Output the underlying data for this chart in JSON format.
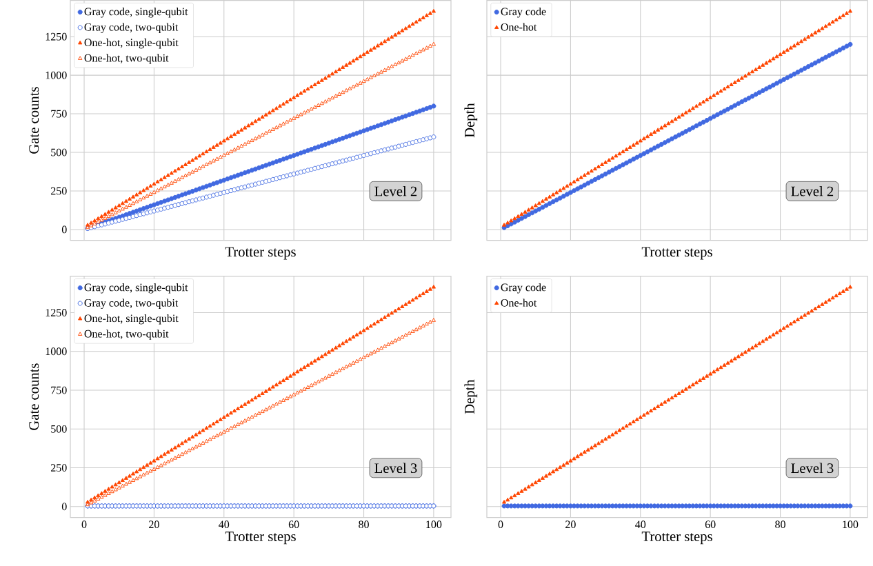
{
  "chart_data": [
    {
      "type": "scatter",
      "xlabel": "Trotter steps",
      "ylabel": "Gate counts",
      "annotations": [
        "Level 2"
      ],
      "grid": true,
      "legend": "top left",
      "tick_labels": "y",
      "xlim": [
        -3.95,
        104.95
      ],
      "ylim": [
        -70,
        1485
      ],
      "xticks": [
        0,
        20,
        40,
        60,
        80,
        100
      ],
      "yticks": [
        0,
        250,
        500,
        750,
        1000,
        1250
      ],
      "x": [
        1,
        2,
        3,
        4,
        5,
        6,
        7,
        8,
        9,
        10,
        11,
        12,
        13,
        14,
        15,
        16,
        17,
        18,
        19,
        20,
        21,
        22,
        23,
        24,
        25,
        26,
        27,
        28,
        29,
        30,
        31,
        32,
        33,
        34,
        35,
        36,
        37,
        38,
        39,
        40,
        41,
        42,
        43,
        44,
        45,
        46,
        47,
        48,
        49,
        50,
        51,
        52,
        53,
        54,
        55,
        56,
        57,
        58,
        59,
        60,
        61,
        62,
        63,
        64,
        65,
        66,
        67,
        68,
        69,
        70,
        71,
        72,
        73,
        74,
        75,
        76,
        77,
        78,
        79,
        80,
        81,
        82,
        83,
        84,
        85,
        86,
        87,
        88,
        89,
        90,
        91,
        92,
        93,
        94,
        95,
        96,
        97,
        98,
        99,
        100
      ],
      "series": [
        {
          "name": "Gray code, single-qubit",
          "color": "#4169e1",
          "marker": "circle",
          "values": [
            8,
            16,
            24,
            32,
            40,
            48,
            56,
            64,
            72,
            80,
            88,
            96,
            104,
            112,
            120,
            128,
            136,
            144,
            152,
            160,
            168,
            176,
            184,
            192,
            200,
            208,
            216,
            224,
            232,
            240,
            248,
            256,
            264,
            272,
            280,
            288,
            296,
            304,
            312,
            320,
            328,
            336,
            344,
            352,
            360,
            368,
            376,
            384,
            392,
            400,
            408,
            416,
            424,
            432,
            440,
            448,
            456,
            464,
            472,
            480,
            488,
            496,
            504,
            512,
            520,
            528,
            536,
            544,
            552,
            560,
            568,
            576,
            584,
            592,
            600,
            608,
            616,
            624,
            632,
            640,
            648,
            656,
            664,
            672,
            680,
            688,
            696,
            704,
            712,
            720,
            728,
            736,
            744,
            752,
            760,
            768,
            776,
            784,
            792,
            800
          ]
        },
        {
          "name": "Gray code, two-qubit",
          "color": "#4169e1",
          "marker": "circle",
          "values": [
            6,
            12,
            18,
            24,
            30,
            36,
            42,
            48,
            54,
            60,
            66,
            72,
            78,
            84,
            90,
            96,
            102,
            108,
            114,
            120,
            126,
            132,
            138,
            144,
            150,
            156,
            162,
            168,
            174,
            180,
            186,
            192,
            198,
            204,
            210,
            216,
            222,
            228,
            234,
            240,
            246,
            252,
            258,
            264,
            270,
            276,
            282,
            288,
            294,
            300,
            306,
            312,
            318,
            324,
            330,
            336,
            342,
            348,
            354,
            360,
            366,
            372,
            378,
            384,
            390,
            396,
            402,
            408,
            414,
            420,
            426,
            432,
            438,
            444,
            450,
            456,
            462,
            468,
            474,
            480,
            486,
            492,
            498,
            504,
            510,
            516,
            522,
            528,
            534,
            540,
            546,
            552,
            558,
            564,
            570,
            576,
            582,
            588,
            594,
            600
          ]
        },
        {
          "name": "One-hot, single-qubit",
          "color": "#ff4500",
          "marker": "triangle",
          "values": [
            28,
            42,
            56,
            70,
            84,
            98,
            112,
            126,
            140,
            154,
            168,
            182,
            196,
            210,
            224,
            238,
            252,
            266,
            280,
            294,
            308,
            322,
            336,
            350,
            364,
            378,
            392,
            406,
            420,
            434,
            448,
            462,
            476,
            490,
            504,
            518,
            532,
            546,
            560,
            574,
            588,
            602,
            616,
            630,
            644,
            658,
            672,
            686,
            700,
            714,
            728,
            742,
            756,
            770,
            784,
            798,
            812,
            826,
            840,
            854,
            868,
            882,
            896,
            910,
            924,
            938,
            952,
            966,
            980,
            994,
            1008,
            1022,
            1036,
            1050,
            1064,
            1078,
            1092,
            1106,
            1120,
            1134,
            1148,
            1162,
            1176,
            1190,
            1204,
            1218,
            1232,
            1246,
            1260,
            1274,
            1288,
            1302,
            1316,
            1330,
            1344,
            1358,
            1372,
            1386,
            1400,
            1414
          ]
        },
        {
          "name": "One-hot, two-qubit",
          "color": "#ff4500",
          "marker": "triangle",
          "values": [
            12,
            24,
            36,
            48,
            60,
            72,
            84,
            96,
            108,
            120,
            132,
            144,
            156,
            168,
            180,
            192,
            204,
            216,
            228,
            240,
            252,
            264,
            276,
            288,
            300,
            312,
            324,
            336,
            348,
            360,
            372,
            384,
            396,
            408,
            420,
            432,
            444,
            456,
            468,
            480,
            492,
            504,
            516,
            528,
            540,
            552,
            564,
            576,
            588,
            600,
            612,
            624,
            636,
            648,
            660,
            672,
            684,
            696,
            708,
            720,
            732,
            744,
            756,
            768,
            780,
            792,
            804,
            816,
            828,
            840,
            852,
            864,
            876,
            888,
            900,
            912,
            924,
            936,
            948,
            960,
            972,
            984,
            996,
            1008,
            1020,
            1032,
            1044,
            1056,
            1068,
            1080,
            1092,
            1104,
            1116,
            1128,
            1140,
            1152,
            1164,
            1176,
            1188,
            1200
          ]
        }
      ]
    },
    {
      "type": "scatter",
      "xlabel": "Trotter steps",
      "ylabel": "Depth",
      "annotations": [
        "Level 2"
      ],
      "grid": true,
      "legend": "top left",
      "tick_labels": false,
      "xlim": [
        -3.95,
        104.95
      ],
      "ylim": [
        -70,
        1485
      ],
      "xticks": [
        0,
        20,
        40,
        60,
        80,
        100
      ],
      "yticks": [
        0,
        250,
        500,
        750,
        1000,
        1250
      ],
      "x": [
        1,
        2,
        3,
        4,
        5,
        6,
        7,
        8,
        9,
        10,
        11,
        12,
        13,
        14,
        15,
        16,
        17,
        18,
        19,
        20,
        21,
        22,
        23,
        24,
        25,
        26,
        27,
        28,
        29,
        30,
        31,
        32,
        33,
        34,
        35,
        36,
        37,
        38,
        39,
        40,
        41,
        42,
        43,
        44,
        45,
        46,
        47,
        48,
        49,
        50,
        51,
        52,
        53,
        54,
        55,
        56,
        57,
        58,
        59,
        60,
        61,
        62,
        63,
        64,
        65,
        66,
        67,
        68,
        69,
        70,
        71,
        72,
        73,
        74,
        75,
        76,
        77,
        78,
        79,
        80,
        81,
        82,
        83,
        84,
        85,
        86,
        87,
        88,
        89,
        90,
        91,
        92,
        93,
        94,
        95,
        96,
        97,
        98,
        99,
        100
      ],
      "series": [
        {
          "name": "Gray code",
          "color": "#4169e1",
          "marker": "circle",
          "values": [
            12,
            24,
            36,
            48,
            60,
            72,
            84,
            96,
            108,
            120,
            132,
            144,
            156,
            168,
            180,
            192,
            204,
            216,
            228,
            240,
            252,
            264,
            276,
            288,
            300,
            312,
            324,
            336,
            348,
            360,
            372,
            384,
            396,
            408,
            420,
            432,
            444,
            456,
            468,
            480,
            492,
            504,
            516,
            528,
            540,
            552,
            564,
            576,
            588,
            600,
            612,
            624,
            636,
            648,
            660,
            672,
            684,
            696,
            708,
            720,
            732,
            744,
            756,
            768,
            780,
            792,
            804,
            816,
            828,
            840,
            852,
            864,
            876,
            888,
            900,
            912,
            924,
            936,
            948,
            960,
            972,
            984,
            996,
            1008,
            1020,
            1032,
            1044,
            1056,
            1068,
            1080,
            1092,
            1104,
            1116,
            1128,
            1140,
            1152,
            1164,
            1176,
            1188,
            1200
          ]
        },
        {
          "name": "One-hot",
          "color": "#ff4500",
          "marker": "triangle",
          "values": [
            28,
            42,
            56,
            70,
            84,
            98,
            112,
            126,
            140,
            154,
            168,
            182,
            196,
            210,
            224,
            238,
            252,
            266,
            280,
            294,
            308,
            322,
            336,
            350,
            364,
            378,
            392,
            406,
            420,
            434,
            448,
            462,
            476,
            490,
            504,
            518,
            532,
            546,
            560,
            574,
            588,
            602,
            616,
            630,
            644,
            658,
            672,
            686,
            700,
            714,
            728,
            742,
            756,
            770,
            784,
            798,
            812,
            826,
            840,
            854,
            868,
            882,
            896,
            910,
            924,
            938,
            952,
            966,
            980,
            994,
            1008,
            1022,
            1036,
            1050,
            1064,
            1078,
            1092,
            1106,
            1120,
            1134,
            1148,
            1162,
            1176,
            1190,
            1204,
            1218,
            1232,
            1246,
            1260,
            1274,
            1288,
            1302,
            1316,
            1330,
            1344,
            1358,
            1372,
            1386,
            1400,
            1414
          ]
        }
      ]
    },
    {
      "type": "scatter",
      "xlabel": "Trotter steps",
      "ylabel": "Gate counts",
      "annotations": [
        "Level 3"
      ],
      "grid": true,
      "legend": "top left",
      "xlim": [
        -3.95,
        104.95
      ],
      "ylim": [
        -70,
        1485
      ],
      "xticks": [
        0,
        20,
        40,
        60,
        80,
        100
      ],
      "yticks": [
        0,
        250,
        500,
        750,
        1000,
        1250
      ],
      "x": [
        1,
        2,
        3,
        4,
        5,
        6,
        7,
        8,
        9,
        10,
        11,
        12,
        13,
        14,
        15,
        16,
        17,
        18,
        19,
        20,
        21,
        22,
        23,
        24,
        25,
        26,
        27,
        28,
        29,
        30,
        31,
        32,
        33,
        34,
        35,
        36,
        37,
        38,
        39,
        40,
        41,
        42,
        43,
        44,
        45,
        46,
        47,
        48,
        49,
        50,
        51,
        52,
        53,
        54,
        55,
        56,
        57,
        58,
        59,
        60,
        61,
        62,
        63,
        64,
        65,
        66,
        67,
        68,
        69,
        70,
        71,
        72,
        73,
        74,
        75,
        76,
        77,
        78,
        79,
        80,
        81,
        82,
        83,
        84,
        85,
        86,
        87,
        88,
        89,
        90,
        91,
        92,
        93,
        94,
        95,
        96,
        97,
        98,
        99,
        100
      ],
      "series": [
        {
          "name": "Gray code, single-qubit",
          "color": "#4169e1",
          "marker": "circle",
          "values": [
            4,
            4,
            4,
            4,
            4,
            4,
            4,
            4,
            4,
            4,
            4,
            4,
            4,
            4,
            4,
            4,
            4,
            4,
            4,
            4,
            4,
            4,
            4,
            4,
            4,
            4,
            4,
            4,
            4,
            4,
            4,
            4,
            4,
            4,
            4,
            4,
            4,
            4,
            4,
            4,
            4,
            4,
            4,
            4,
            4,
            4,
            4,
            4,
            4,
            4,
            4,
            4,
            4,
            4,
            4,
            4,
            4,
            4,
            4,
            4,
            4,
            4,
            4,
            4,
            4,
            4,
            4,
            4,
            4,
            4,
            4,
            4,
            4,
            4,
            4,
            4,
            4,
            4,
            4,
            4,
            4,
            4,
            4,
            4,
            4,
            4,
            4,
            4,
            4,
            4,
            4,
            4,
            4,
            4,
            4,
            4,
            4,
            4,
            4,
            4
          ]
        },
        {
          "name": "Gray code, two-qubit",
          "color": "#4169e1",
          "marker": "circle",
          "values": [
            4,
            4,
            4,
            4,
            4,
            4,
            4,
            4,
            4,
            4,
            4,
            4,
            4,
            4,
            4,
            4,
            4,
            4,
            4,
            4,
            4,
            4,
            4,
            4,
            4,
            4,
            4,
            4,
            4,
            4,
            4,
            4,
            4,
            4,
            4,
            4,
            4,
            4,
            4,
            4,
            4,
            4,
            4,
            4,
            4,
            4,
            4,
            4,
            4,
            4,
            4,
            4,
            4,
            4,
            4,
            4,
            4,
            4,
            4,
            4,
            4,
            4,
            4,
            4,
            4,
            4,
            4,
            4,
            4,
            4,
            4,
            4,
            4,
            4,
            4,
            4,
            4,
            4,
            4,
            4,
            4,
            4,
            4,
            4,
            4,
            4,
            4,
            4,
            4,
            4,
            4,
            4,
            4,
            4,
            4,
            4,
            4,
            4,
            4,
            4
          ]
        },
        {
          "name": "One-hot, single-qubit",
          "color": "#ff4500",
          "marker": "triangle",
          "values": [
            28,
            42,
            56,
            70,
            84,
            98,
            112,
            126,
            140,
            154,
            168,
            182,
            196,
            210,
            224,
            238,
            252,
            266,
            280,
            294,
            308,
            322,
            336,
            350,
            364,
            378,
            392,
            406,
            420,
            434,
            448,
            462,
            476,
            490,
            504,
            518,
            532,
            546,
            560,
            574,
            588,
            602,
            616,
            630,
            644,
            658,
            672,
            686,
            700,
            714,
            728,
            742,
            756,
            770,
            784,
            798,
            812,
            826,
            840,
            854,
            868,
            882,
            896,
            910,
            924,
            938,
            952,
            966,
            980,
            994,
            1008,
            1022,
            1036,
            1050,
            1064,
            1078,
            1092,
            1106,
            1120,
            1134,
            1148,
            1162,
            1176,
            1190,
            1204,
            1218,
            1232,
            1246,
            1260,
            1274,
            1288,
            1302,
            1316,
            1330,
            1344,
            1358,
            1372,
            1386,
            1400,
            1414
          ]
        },
        {
          "name": "One-hot, two-qubit",
          "color": "#ff4500",
          "marker": "triangle",
          "values": [
            12,
            24,
            36,
            48,
            60,
            72,
            84,
            96,
            108,
            120,
            132,
            144,
            156,
            168,
            180,
            192,
            204,
            216,
            228,
            240,
            252,
            264,
            276,
            288,
            300,
            312,
            324,
            336,
            348,
            360,
            372,
            384,
            396,
            408,
            420,
            432,
            444,
            456,
            468,
            480,
            492,
            504,
            516,
            528,
            540,
            552,
            564,
            576,
            588,
            600,
            612,
            624,
            636,
            648,
            660,
            672,
            684,
            696,
            708,
            720,
            732,
            744,
            756,
            768,
            780,
            792,
            804,
            816,
            828,
            840,
            852,
            864,
            876,
            888,
            900,
            912,
            924,
            936,
            948,
            960,
            972,
            984,
            996,
            1008,
            1020,
            1032,
            1044,
            1056,
            1068,
            1080,
            1092,
            1104,
            1116,
            1128,
            1140,
            1152,
            1164,
            1176,
            1188,
            1200
          ]
        }
      ]
    },
    {
      "type": "scatter",
      "xlabel": "Trotter steps",
      "ylabel": "Depth",
      "annotations": [
        "Level 3"
      ],
      "grid": true,
      "legend": "top left",
      "tick_labels": "x",
      "xlim": [
        -3.95,
        104.95
      ],
      "ylim": [
        -70,
        1485
      ],
      "xticks": [
        0,
        20,
        40,
        60,
        80,
        100
      ],
      "yticks": [
        0,
        250,
        500,
        750,
        1000,
        1250
      ],
      "x": [
        1,
        2,
        3,
        4,
        5,
        6,
        7,
        8,
        9,
        10,
        11,
        12,
        13,
        14,
        15,
        16,
        17,
        18,
        19,
        20,
        21,
        22,
        23,
        24,
        25,
        26,
        27,
        28,
        29,
        30,
        31,
        32,
        33,
        34,
        35,
        36,
        37,
        38,
        39,
        40,
        41,
        42,
        43,
        44,
        45,
        46,
        47,
        48,
        49,
        50,
        51,
        52,
        53,
        54,
        55,
        56,
        57,
        58,
        59,
        60,
        61,
        62,
        63,
        64,
        65,
        66,
        67,
        68,
        69,
        70,
        71,
        72,
        73,
        74,
        75,
        76,
        77,
        78,
        79,
        80,
        81,
        82,
        83,
        84,
        85,
        86,
        87,
        88,
        89,
        90,
        91,
        92,
        93,
        94,
        95,
        96,
        97,
        98,
        99,
        100
      ],
      "series": [
        {
          "name": "Gray code",
          "color": "#4169e1",
          "marker": "circle",
          "values": [
            4,
            4,
            4,
            4,
            4,
            4,
            4,
            4,
            4,
            4,
            4,
            4,
            4,
            4,
            4,
            4,
            4,
            4,
            4,
            4,
            4,
            4,
            4,
            4,
            4,
            4,
            4,
            4,
            4,
            4,
            4,
            4,
            4,
            4,
            4,
            4,
            4,
            4,
            4,
            4,
            4,
            4,
            4,
            4,
            4,
            4,
            4,
            4,
            4,
            4,
            4,
            4,
            4,
            4,
            4,
            4,
            4,
            4,
            4,
            4,
            4,
            4,
            4,
            4,
            4,
            4,
            4,
            4,
            4,
            4,
            4,
            4,
            4,
            4,
            4,
            4,
            4,
            4,
            4,
            4,
            4,
            4,
            4,
            4,
            4,
            4,
            4,
            4,
            4,
            4,
            4,
            4,
            4,
            4,
            4,
            4,
            4,
            4,
            4,
            4
          ]
        },
        {
          "name": "One-hot",
          "color": "#ff4500",
          "marker": "triangle",
          "values": [
            28,
            42,
            56,
            70,
            84,
            98,
            112,
            126,
            140,
            154,
            168,
            182,
            196,
            210,
            224,
            238,
            252,
            266,
            280,
            294,
            308,
            322,
            336,
            350,
            364,
            378,
            392,
            406,
            420,
            434,
            448,
            462,
            476,
            490,
            504,
            518,
            532,
            546,
            560,
            574,
            588,
            602,
            616,
            630,
            644,
            658,
            672,
            686,
            700,
            714,
            728,
            742,
            756,
            770,
            784,
            798,
            812,
            826,
            840,
            854,
            868,
            882,
            896,
            910,
            924,
            938,
            952,
            966,
            980,
            994,
            1008,
            1022,
            1036,
            1050,
            1064,
            1078,
            1092,
            1106,
            1120,
            1134,
            1148,
            1162,
            1176,
            1190,
            1204,
            1218,
            1232,
            1246,
            1260,
            1274,
            1288,
            1302,
            1316,
            1330,
            1344,
            1358,
            1372,
            1386,
            1400,
            1414
          ]
        }
      ]
    }
  ]
}
